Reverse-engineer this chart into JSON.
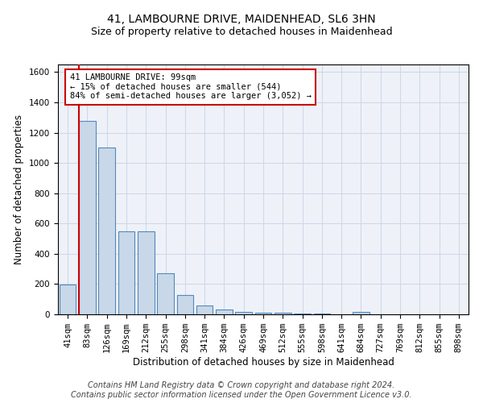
{
  "title": "41, LAMBOURNE DRIVE, MAIDENHEAD, SL6 3HN",
  "subtitle": "Size of property relative to detached houses in Maidenhead",
  "xlabel": "Distribution of detached houses by size in Maidenhead",
  "ylabel": "Number of detached properties",
  "bar_labels": [
    "41sqm",
    "83sqm",
    "126sqm",
    "169sqm",
    "212sqm",
    "255sqm",
    "298sqm",
    "341sqm",
    "384sqm",
    "426sqm",
    "469sqm",
    "512sqm",
    "555sqm",
    "598sqm",
    "641sqm",
    "684sqm",
    "727sqm",
    "769sqm",
    "812sqm",
    "855sqm",
    "898sqm"
  ],
  "bar_values": [
    196,
    1280,
    1100,
    550,
    550,
    270,
    130,
    60,
    32,
    18,
    12,
    8,
    5,
    3,
    0,
    15,
    0,
    0,
    0,
    0,
    0
  ],
  "bar_color": "#c8d8e8",
  "bar_edge_color": "#5588bb",
  "annotation_text": "41 LAMBOURNE DRIVE: 99sqm\n← 15% of detached houses are smaller (544)\n84% of semi-detached houses are larger (3,052) →",
  "annotation_box_color": "white",
  "annotation_box_edge_color": "#cc0000",
  "red_line_color": "#cc0000",
  "ylim": [
    0,
    1650
  ],
  "yticks": [
    0,
    200,
    400,
    600,
    800,
    1000,
    1200,
    1400,
    1600
  ],
  "grid_color": "#d0d8e8",
  "bg_color": "#eef2f8",
  "footer_line1": "Contains HM Land Registry data © Crown copyright and database right 2024.",
  "footer_line2": "Contains public sector information licensed under the Open Government Licence v3.0.",
  "title_fontsize": 10,
  "subtitle_fontsize": 9,
  "axis_label_fontsize": 8.5,
  "tick_fontsize": 7.5,
  "annotation_fontsize": 7.5,
  "footer_fontsize": 7
}
